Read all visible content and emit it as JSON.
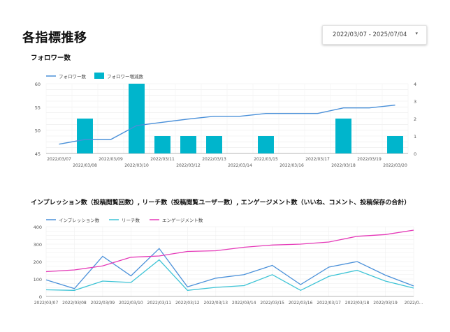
{
  "page": {
    "title": "各指標推移"
  },
  "date_range": {
    "label": "2022/03/07 - 2025/07/04"
  },
  "chart_data": [
    {
      "type": "bar+line",
      "title": "フォロワー数",
      "categories": [
        "2022/03/07",
        "2022/03/08",
        "2022/03/09",
        "2022/03/10",
        "2022/03/11",
        "2022/03/12",
        "2022/03/13",
        "2022/03/14",
        "2022/03/15",
        "2022/03/16",
        "2022/03/17",
        "2022/03/18",
        "2022/03/19",
        "2022/03/20"
      ],
      "series": [
        {
          "name": "フォロワー数",
          "kind": "line",
          "axis": "left",
          "color": "#4a90d9",
          "values": [
            47,
            48,
            48,
            51,
            51.7,
            52.4,
            53,
            53,
            53.6,
            53.6,
            53.6,
            54.8,
            54.8,
            55.4
          ]
        },
        {
          "name": "フォロワー増減数",
          "kind": "bar",
          "axis": "right",
          "color": "#00b5cc",
          "values": [
            0,
            2,
            0,
            4,
            1,
            1,
            1,
            0,
            1,
            0,
            0,
            2,
            0,
            1
          ]
        }
      ],
      "ylim_left": [
        45,
        60
      ],
      "yticks_left": [
        "45",
        "50",
        "55",
        "60"
      ],
      "ylim_right": [
        0,
        4
      ],
      "yticks_right": [
        "0",
        "1",
        "2",
        "3",
        "4"
      ],
      "legend_position": "top-left",
      "grid": true
    },
    {
      "type": "line",
      "title": "インプレッション数（投稿閲覧回数）, リーチ数（投稿閲覧ユーザー数）, エンゲージメント数（いいね、コメント、投稿保存の合計）",
      "categories": [
        "2022/03/07",
        "2022/03/08",
        "2022/03/09",
        "2022/03/10",
        "2022/03/11",
        "2022/03/12",
        "2022/03/13",
        "2022/03/14",
        "2022/03/15",
        "2022/03/16",
        "2022/03/17",
        "2022/03/18",
        "2022/03/19",
        "2022/03/20"
      ],
      "tick_labels": [
        "2022/03/07",
        "2022/03/08",
        "2022/03/09",
        "2022/03/10",
        "2022/03/11",
        "2022/03/12",
        "2022/03/13",
        "2022/03/14",
        "2022/03/15",
        "2022/03/16",
        "2022/03/17",
        "2022/03/18",
        "2022/03/19",
        "2022/0..."
      ],
      "series": [
        {
          "name": "インプレッション数",
          "color": "#4a90d9",
          "values": [
            95,
            45,
            230,
            118,
            275,
            55,
            105,
            125,
            178,
            68,
            168,
            200,
            122,
            60
          ]
        },
        {
          "name": "リーチ数",
          "color": "#3cc3d5",
          "values": [
            38,
            35,
            88,
            80,
            210,
            35,
            52,
            62,
            125,
            35,
            115,
            150,
            88,
            48
          ]
        },
        {
          "name": "エンゲージメント数",
          "color": "#e539b8",
          "values": [
            142,
            152,
            175,
            225,
            232,
            258,
            262,
            282,
            295,
            300,
            312,
            345,
            355,
            380
          ]
        }
      ],
      "ylim": [
        0,
        400
      ],
      "yticks": [
        "0",
        "100",
        "200",
        "300",
        "400"
      ],
      "legend_position": "top-left",
      "grid": true
    }
  ]
}
